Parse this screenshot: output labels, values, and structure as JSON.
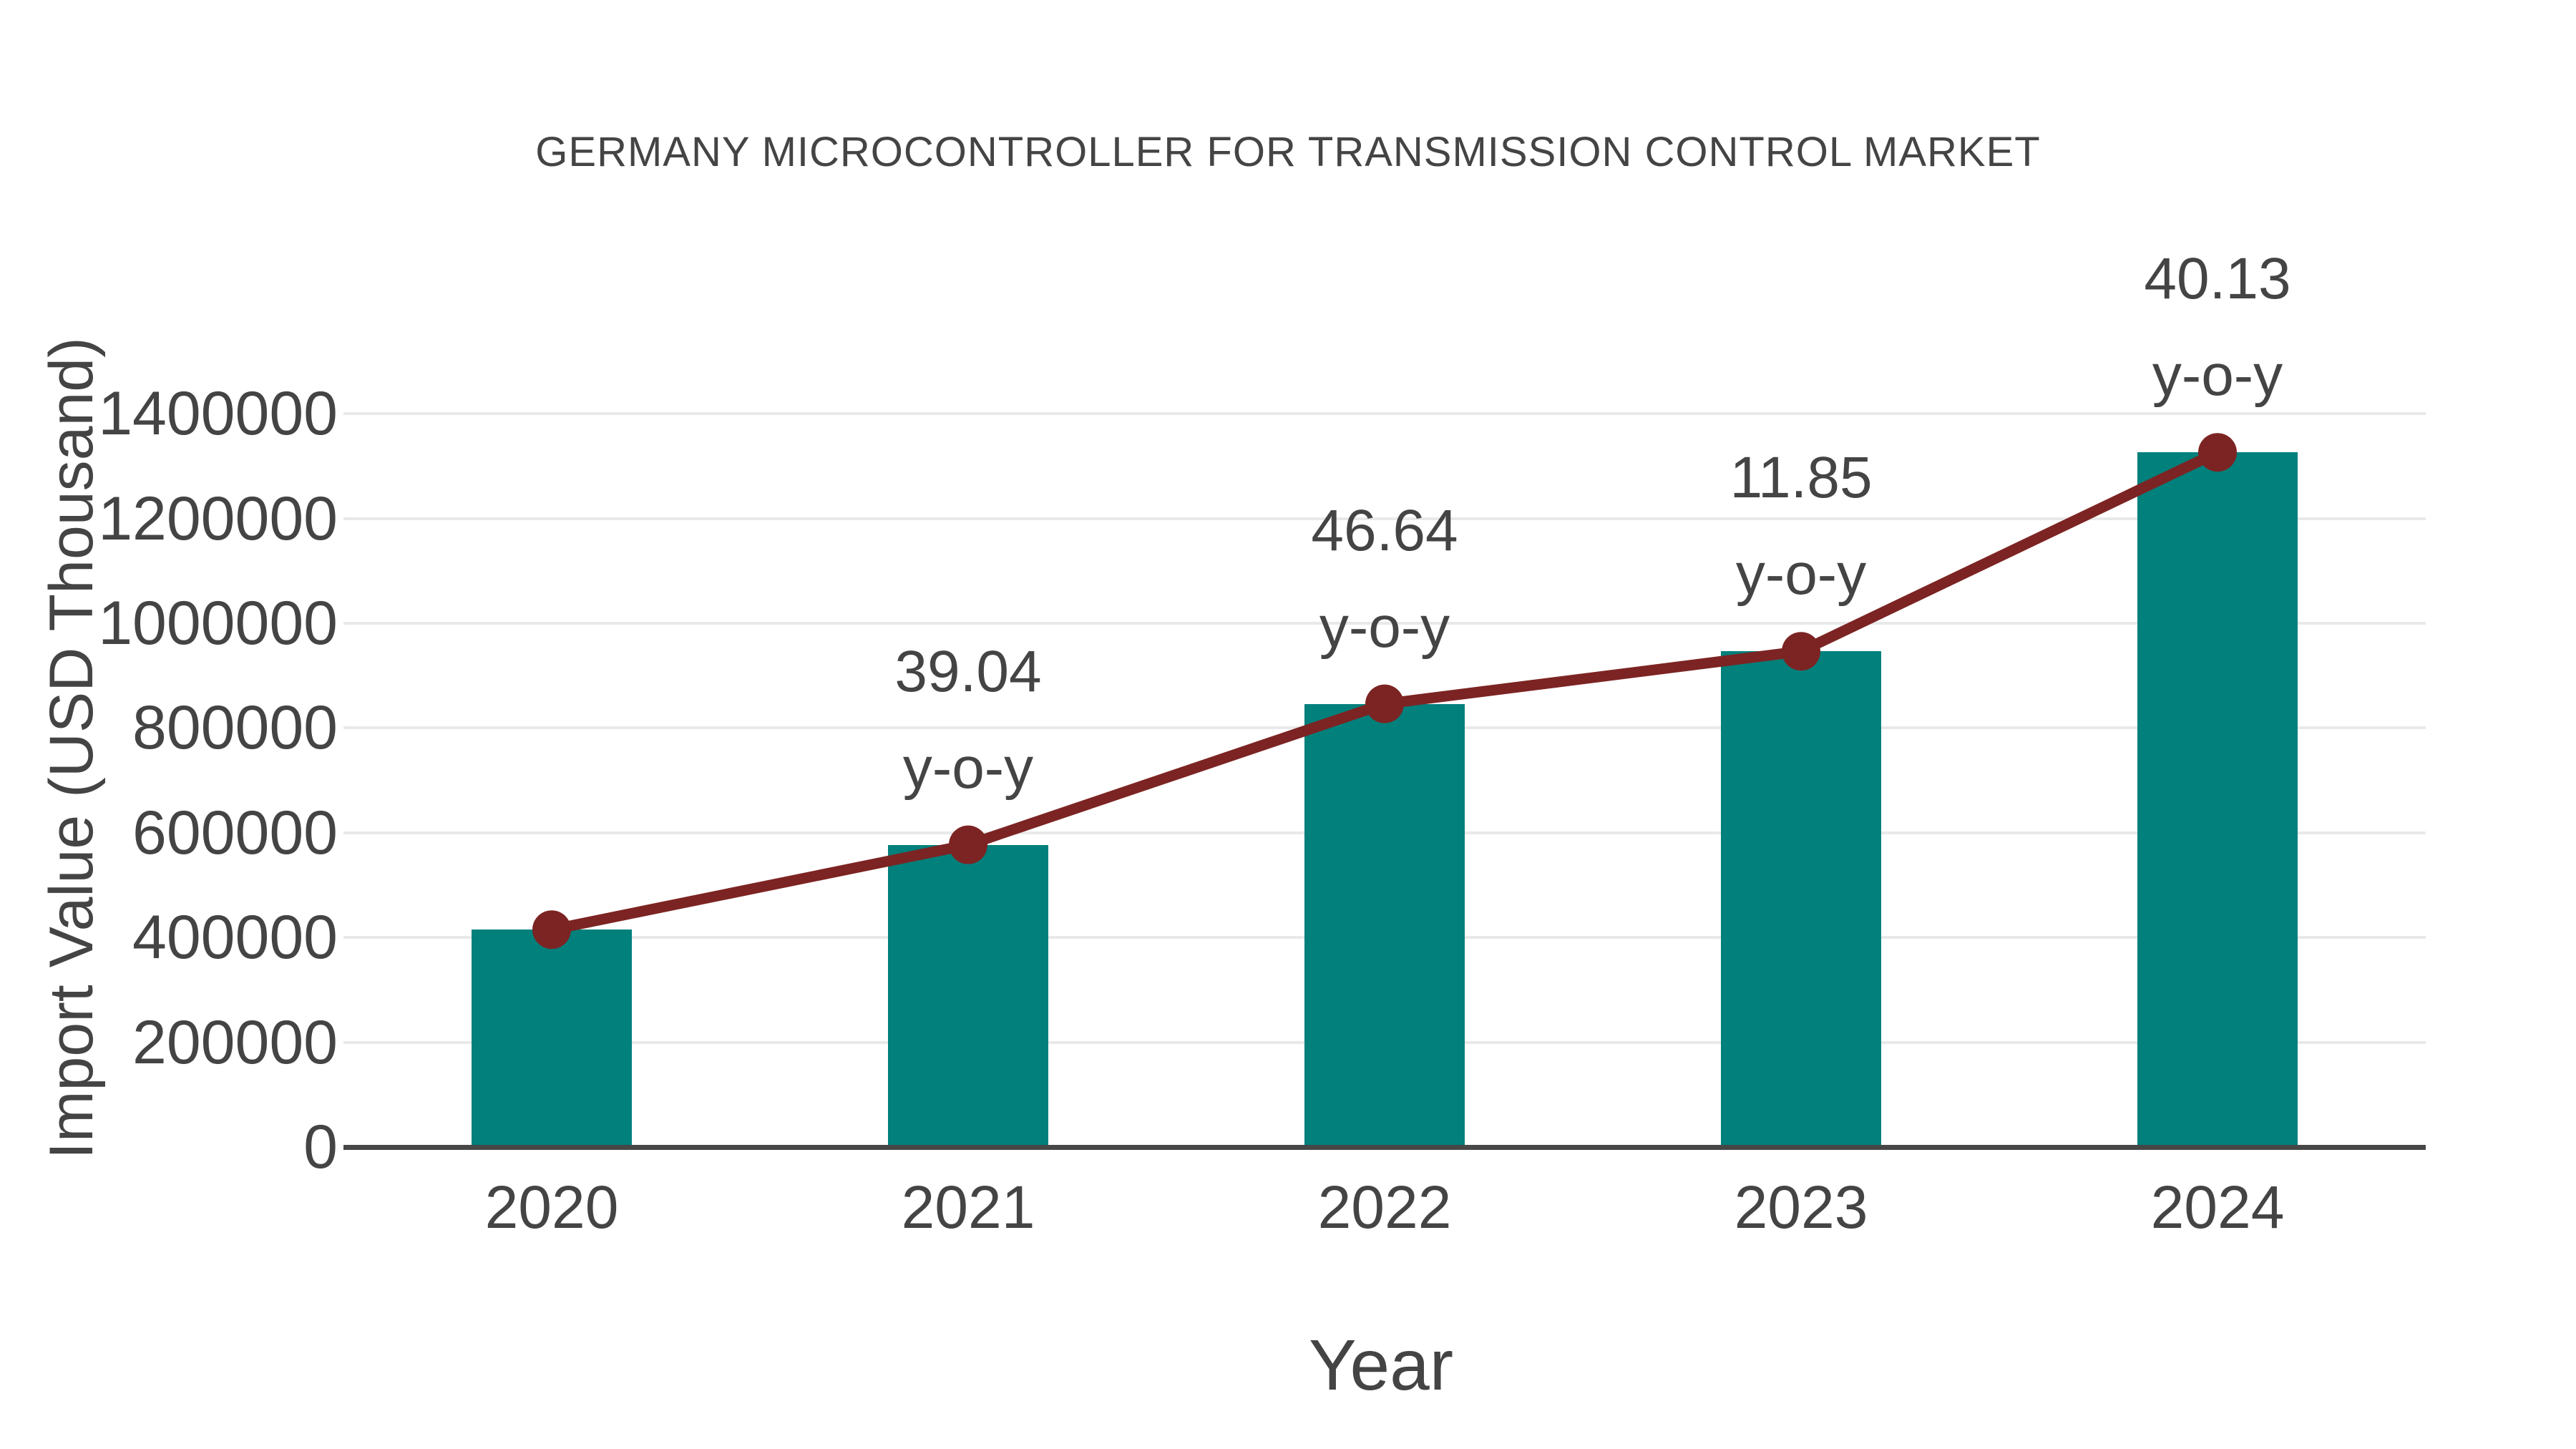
{
  "chart_data": {
    "type": "combo-bar-line",
    "title": "GERMANY MICROCONTROLLER FOR TRANSMISSION CONTROL MARKET",
    "xlabel": "Year",
    "ylabel": "Import Value (USD Thousand)",
    "categories": [
      "2020",
      "2021",
      "2022",
      "2023",
      "2024"
    ],
    "series": [
      {
        "name": "Import Value",
        "type": "bar",
        "color": "#01807c",
        "values": [
          415000,
          577000,
          846100,
          946400,
          1326200
        ]
      },
      {
        "name": "Y-o-Y Growth",
        "type": "line",
        "color": "#7c2423",
        "values": [
          415000,
          577000,
          846100,
          946400,
          1326200
        ],
        "growth_pct": [
          null,
          39.04,
          46.64,
          11.85,
          40.13
        ]
      }
    ],
    "annotations": [
      {
        "category": "2021",
        "line1": "39.04",
        "line2": "y-o-y"
      },
      {
        "category": "2022",
        "line1": "46.64",
        "line2": "y-o-y"
      },
      {
        "category": "2023",
        "line1": "11.85",
        "line2": "y-o-y"
      },
      {
        "category": "2024",
        "line1": "40.13",
        "line2": "y-o-y"
      }
    ],
    "yticks": [
      0,
      200000,
      400000,
      600000,
      800000,
      1000000,
      1200000,
      1400000
    ],
    "ylim": [
      0,
      1400000
    ],
    "grid": "horizontal",
    "legend": "none",
    "colors": {
      "bar": "#01807c",
      "line": "#7c2423",
      "text": "#444444",
      "gridline": "#e8eaea",
      "axis": "#474747",
      "background": "#ffffff"
    }
  }
}
